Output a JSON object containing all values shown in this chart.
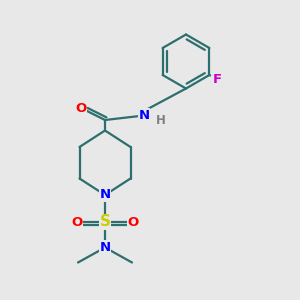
{
  "background_color": "#e8e8e8",
  "bond_color": "#2d6e6e",
  "line_width": 1.6,
  "atom_colors": {
    "O": "#ff0000",
    "N": "#0000ff",
    "S": "#cccc00",
    "F": "#cc00cc",
    "C": "#2d6e6e",
    "H": "#808080"
  },
  "fig_width": 3.0,
  "fig_height": 3.0,
  "dpi": 100
}
